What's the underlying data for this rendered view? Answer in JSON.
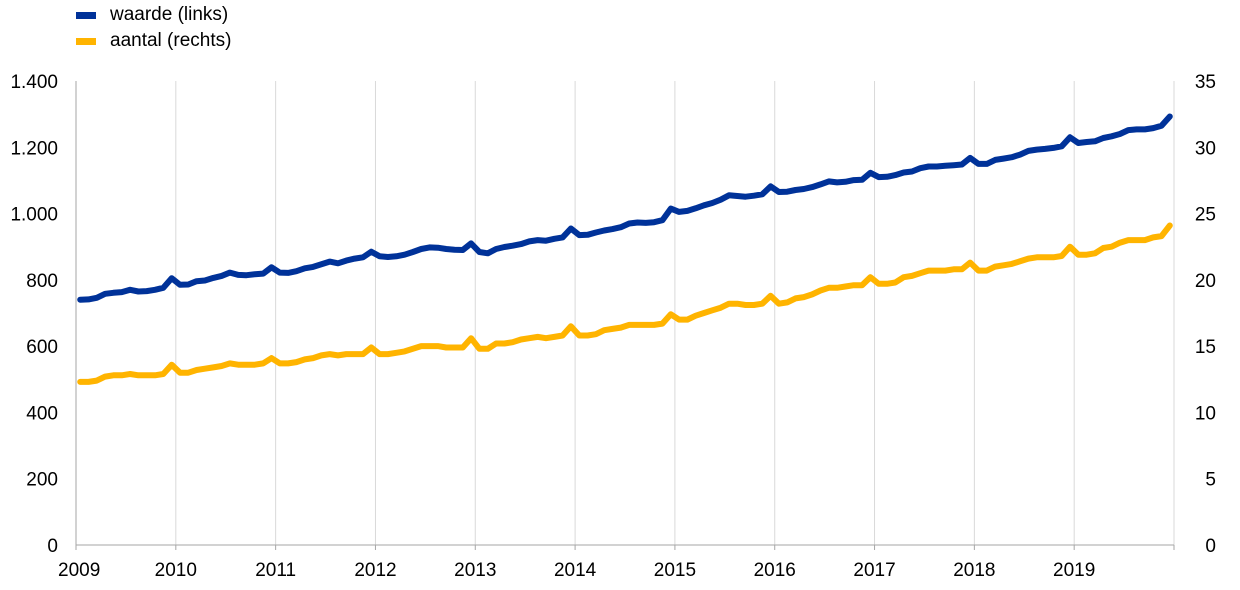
{
  "chart_data": {
    "type": "line",
    "title": "",
    "x_ticks": [
      "2009",
      "2010",
      "2011",
      "2012",
      "2013",
      "2014",
      "2015",
      "2016",
      "2017",
      "2018",
      "2019"
    ],
    "x_range": [
      "2009-01",
      "2019-12"
    ],
    "y_left": {
      "label": "",
      "range": [
        0,
        1400
      ],
      "ticks": [
        "0",
        "200",
        "400",
        "600",
        "800",
        "1.000",
        "1.200",
        "1.400"
      ],
      "tick_values": [
        0,
        200,
        400,
        600,
        800,
        1000,
        1200,
        1400
      ]
    },
    "y_right": {
      "label": "",
      "range": [
        0,
        35
      ],
      "ticks": [
        "0",
        "5",
        "10",
        "15",
        "20",
        "25",
        "30",
        "35"
      ],
      "tick_values": [
        0,
        5,
        10,
        15,
        20,
        25,
        30,
        35
      ]
    },
    "grid": "vertical",
    "legend_position": "top-left",
    "series": [
      {
        "name": "waarde (links)",
        "axis": "left",
        "color": "#003299",
        "values": [
          740,
          741,
          746,
          758,
          761,
          763,
          770,
          765,
          766,
          770,
          776,
          805,
          785,
          786,
          796,
          798,
          806,
          812,
          822,
          815,
          814,
          817,
          819,
          838,
          822,
          821,
          826,
          835,
          839,
          847,
          855,
          850,
          858,
          864,
          868,
          885,
          871,
          869,
          871,
          876,
          884,
          893,
          898,
          897,
          893,
          891,
          890,
          910,
          884,
          880,
          893,
          899,
          903,
          908,
          916,
          920,
          918,
          924,
          928,
          955,
          935,
          936,
          943,
          949,
          953,
          959,
          970,
          973,
          972,
          974,
          980,
          1015,
          1005,
          1008,
          1016,
          1025,
          1032,
          1042,
          1055,
          1053,
          1051,
          1054,
          1058,
          1082,
          1065,
          1066,
          1071,
          1074,
          1080,
          1088,
          1097,
          1094,
          1096,
          1101,
          1102,
          1123,
          1110,
          1111,
          1116,
          1124,
          1127,
          1137,
          1142,
          1142,
          1144,
          1146,
          1148,
          1168,
          1150,
          1150,
          1162,
          1166,
          1170,
          1178,
          1189,
          1193,
          1195,
          1198,
          1203,
          1230,
          1213,
          1216,
          1218,
          1228,
          1233,
          1240,
          1252,
          1254,
          1254,
          1258,
          1265,
          1293
        ]
      },
      {
        "name": "aantal (rechts)",
        "axis": "right",
        "color": "#FFB400",
        "values": [
          12.3,
          12.3,
          12.4,
          12.7,
          12.8,
          12.8,
          12.9,
          12.8,
          12.8,
          12.8,
          12.9,
          13.6,
          13.0,
          13.0,
          13.2,
          13.3,
          13.4,
          13.5,
          13.7,
          13.6,
          13.6,
          13.6,
          13.7,
          14.1,
          13.7,
          13.7,
          13.8,
          14.0,
          14.1,
          14.3,
          14.4,
          14.3,
          14.4,
          14.4,
          14.4,
          14.9,
          14.4,
          14.4,
          14.5,
          14.6,
          14.8,
          15.0,
          15.0,
          15.0,
          14.9,
          14.9,
          14.9,
          15.6,
          14.8,
          14.8,
          15.2,
          15.2,
          15.3,
          15.5,
          15.6,
          15.7,
          15.6,
          15.7,
          15.8,
          16.5,
          15.8,
          15.8,
          15.9,
          16.2,
          16.3,
          16.4,
          16.6,
          16.6,
          16.6,
          16.6,
          16.7,
          17.4,
          17.0,
          17.0,
          17.3,
          17.5,
          17.7,
          17.9,
          18.2,
          18.2,
          18.1,
          18.1,
          18.2,
          18.8,
          18.2,
          18.3,
          18.6,
          18.7,
          18.9,
          19.2,
          19.4,
          19.4,
          19.5,
          19.6,
          19.6,
          20.2,
          19.7,
          19.7,
          19.8,
          20.2,
          20.3,
          20.5,
          20.7,
          20.7,
          20.7,
          20.8,
          20.8,
          21.3,
          20.7,
          20.7,
          21.0,
          21.1,
          21.2,
          21.4,
          21.6,
          21.7,
          21.7,
          21.7,
          21.8,
          22.5,
          21.9,
          21.9,
          22.0,
          22.4,
          22.5,
          22.8,
          23.0,
          23.0,
          23.0,
          23.2,
          23.3,
          24.1
        ]
      }
    ]
  }
}
